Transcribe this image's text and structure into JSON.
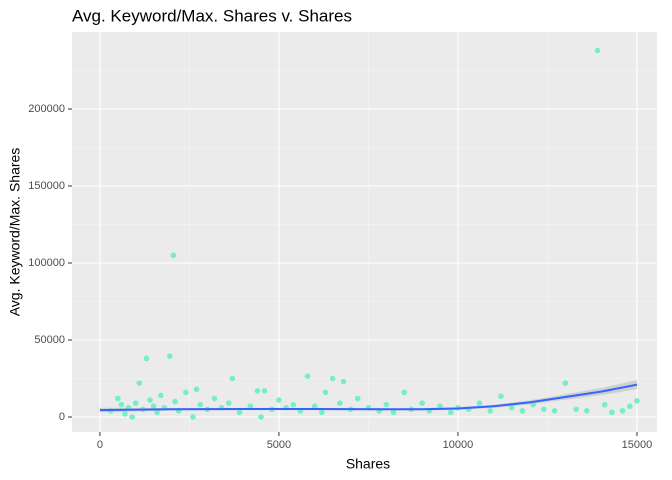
{
  "chart_data": {
    "type": "scatter",
    "title": "Avg. Keyword/Max. Shares v. Shares",
    "x_label": "Shares",
    "y_label": "Avg. Keyword/Max. Shares",
    "xlim": [
      -780,
      15560
    ],
    "ylim": [
      -9740,
      250000
    ],
    "xticks": [
      0,
      5000,
      10000,
      15000
    ],
    "yticks": [
      0,
      50000,
      100000,
      150000,
      200000
    ],
    "grid": true,
    "color": "#76EEC6",
    "x": [
      300,
      500,
      600,
      700,
      800,
      900,
      1000,
      1100,
      1200,
      1300,
      1400,
      1500,
      1600,
      1700,
      1800,
      1950,
      2050,
      2100,
      2200,
      2400,
      2600,
      2700,
      2800,
      3000,
      3200,
      3400,
      3600,
      3700,
      3900,
      4200,
      4400,
      4500,
      4600,
      4800,
      5000,
      5200,
      5400,
      5600,
      5800,
      6000,
      6200,
      6300,
      6500,
      6700,
      6800,
      7000,
      7200,
      7500,
      7800,
      8000,
      8200,
      8500,
      8700,
      9000,
      9200,
      9500,
      9800,
      10000,
      10300,
      10600,
      10900,
      11200,
      11500,
      11800,
      12100,
      12400,
      12700,
      13000,
      13300,
      13600,
      13900,
      14100,
      14300,
      14600,
      14800,
      15000
    ],
    "values": [
      4000,
      12000,
      8000,
      2000,
      6000,
      0,
      9000,
      22000,
      5000,
      38000,
      11000,
      7000,
      3000,
      14000,
      6000,
      39500,
      105000,
      10000,
      4000,
      16000,
      0,
      18000,
      8000,
      5000,
      12000,
      6000,
      9000,
      25000,
      3000,
      7000,
      17000,
      0,
      17000,
      5000,
      11000,
      6000,
      8000,
      4000,
      26500,
      7000,
      3000,
      16000,
      25000,
      9000,
      23000,
      5000,
      12000,
      6000,
      4000,
      8000,
      3000,
      16000,
      5000,
      9000,
      4000,
      7000,
      3000,
      6000,
      5000,
      9000,
      4000,
      13500,
      6000,
      4000,
      8000,
      5000,
      4000,
      22000,
      5000,
      4000,
      238000,
      8000,
      3000,
      4000,
      7000,
      10500
    ],
    "smooth": {
      "color": "#3366FF",
      "band_color": "#BEBEBE",
      "x": [
        0,
        2000,
        4000,
        6000,
        8000,
        9000,
        10000,
        11000,
        12000,
        13000,
        14000,
        15000
      ],
      "values": [
        4500,
        5000,
        5200,
        5200,
        5000,
        5000,
        5500,
        7000,
        9500,
        13000,
        16500,
        21000
      ],
      "upper": [
        6000,
        5800,
        5900,
        5900,
        5700,
        5800,
        6400,
        8000,
        10800,
        14800,
        18800,
        24000
      ],
      "lower": [
        3000,
        4200,
        4500,
        4500,
        4300,
        4200,
        4600,
        6000,
        8200,
        11200,
        14200,
        18000
      ]
    }
  }
}
